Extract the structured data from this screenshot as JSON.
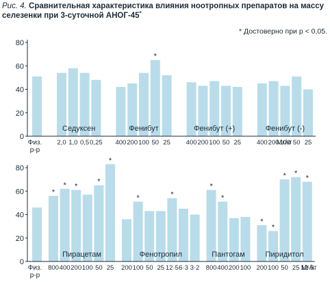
{
  "caption": {
    "label": "Рис. 4.",
    "title": "Сравнительная характеристика влияния ноотропных препаратов на массу селезенки при 3-суточной АНОГ-45˚"
  },
  "note": "* Достоверно при p < 0,05.",
  "colors": {
    "bar": "#b8dcea",
    "text": "#1b2a38",
    "axis": "#1b2a38"
  },
  "chart_data": [
    {
      "type": "bar",
      "ylim": [
        0,
        80
      ],
      "yticks": [
        "0",
        "20",
        "40",
        "60",
        "80"
      ],
      "control_label": "Физ. р-р",
      "unit_label": "Мг/кг",
      "groups": [
        {
          "name": "",
          "doses": [
            ""
          ],
          "values": [
            51
          ],
          "significant": [
            false
          ]
        },
        {
          "name": "Седуксен",
          "doses": [
            "2,0",
            "1,0",
            "0,5",
            "0,25"
          ],
          "values": [
            54,
            58,
            54,
            48
          ],
          "significant": [
            false,
            false,
            false,
            false
          ]
        },
        {
          "name": "Фенибут",
          "doses": [
            "400",
            "200",
            "100",
            "50",
            "25"
          ],
          "values": [
            42,
            45,
            54,
            65,
            52
          ],
          "significant": [
            false,
            false,
            false,
            true,
            false
          ]
        },
        {
          "name": "Фенибут (+)",
          "doses": [
            "400",
            "200",
            "100",
            "50",
            "25"
          ],
          "values": [
            46,
            43,
            47,
            43,
            42
          ],
          "significant": [
            false,
            false,
            false,
            false,
            false
          ]
        },
        {
          "name": "Фенибут (-)",
          "doses": [
            "400",
            "200",
            "100",
            "50",
            "25"
          ],
          "values": [
            45,
            47,
            43,
            51,
            40
          ],
          "significant": [
            false,
            false,
            false,
            false,
            false
          ]
        }
      ]
    },
    {
      "type": "bar",
      "ylim": [
        0,
        80
      ],
      "yticks": [
        "0",
        "20",
        "40",
        "60",
        "80"
      ],
      "control_label": "Физ. р-р",
      "unit_label": "Мг/кг",
      "groups": [
        {
          "name": "",
          "doses": [
            ""
          ],
          "values": [
            46
          ],
          "significant": [
            false
          ]
        },
        {
          "name": "Пирацетам",
          "doses": [
            "800",
            "400",
            "200",
            "100",
            "50",
            "25"
          ],
          "values": [
            56,
            62,
            61,
            57,
            65,
            83
          ],
          "significant": [
            true,
            true,
            true,
            false,
            true,
            true
          ]
        },
        {
          "name": "Фенотропил",
          "doses": [
            "200",
            "100",
            "50",
            "25",
            "12·5",
            "6·3",
            "3·2"
          ],
          "values": [
            36,
            51,
            43,
            43,
            54,
            45,
            40
          ],
          "significant": [
            false,
            true,
            false,
            false,
            true,
            false,
            false
          ]
        },
        {
          "name": "Пантогам",
          "doses": [
            "800",
            "400",
            "200",
            "100"
          ],
          "values": [
            61,
            51,
            37,
            38
          ],
          "significant": [
            true,
            true,
            false,
            false
          ]
        },
        {
          "name": "Пиридитол",
          "doses": [
            "200",
            "100",
            "50",
            "25",
            "12·5"
          ],
          "values": [
            31,
            26,
            70,
            72,
            68
          ],
          "significant": [
            true,
            true,
            true,
            true,
            true
          ]
        }
      ]
    }
  ]
}
